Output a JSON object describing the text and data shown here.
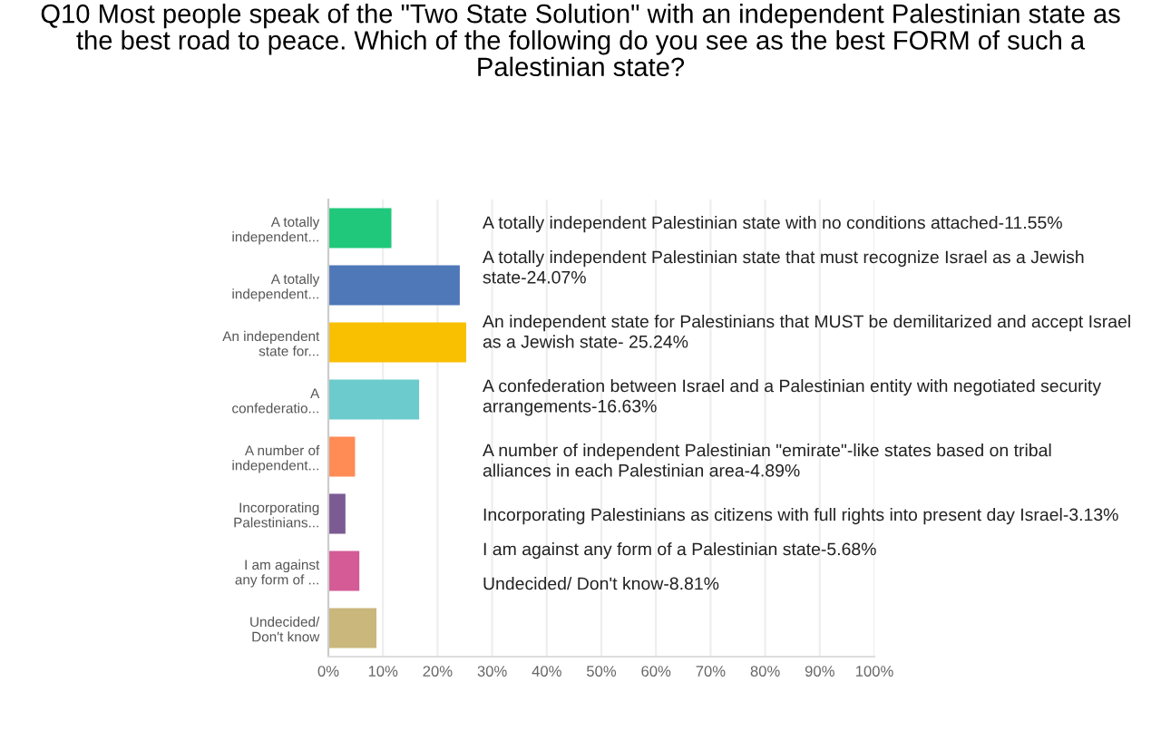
{
  "chart_data": {
    "type": "bar",
    "orientation": "horizontal",
    "title": "Q10 Most people speak of the \"Two State Solution\" with an independent Palestinian state as\nthe best road to peace. Which of the following do you see as the best FORM of such a\nPalestinian state?",
    "categories": [
      "A totally\nindependent...",
      "A totally\nindependent...",
      "An independent\nstate for...",
      "A\nconfederatio...",
      "A number of\nindependent...",
      "Incorporating\nPalestinians...",
      "I am against\nany form of ...",
      "Undecided/\nDon't know"
    ],
    "values": [
      11.55,
      24.07,
      25.24,
      16.63,
      4.89,
      3.13,
      5.68,
      8.81
    ],
    "colors": [
      "#1fc87b",
      "#4f78b8",
      "#f8c000",
      "#6ccbcc",
      "#ff8b55",
      "#7b5b92",
      "#d45b95",
      "#c9b77c"
    ],
    "xlim": [
      0,
      100
    ],
    "xticks": [
      {
        "value": 0,
        "label": "0%"
      },
      {
        "value": 10,
        "label": "10%"
      },
      {
        "value": 20,
        "label": "20%"
      },
      {
        "value": 30,
        "label": "30%"
      },
      {
        "value": 40,
        "label": "40%"
      },
      {
        "value": 50,
        "label": "50%"
      },
      {
        "value": 60,
        "label": "60%"
      },
      {
        "value": 70,
        "label": "70%"
      },
      {
        "value": 80,
        "label": "80%"
      },
      {
        "value": 90,
        "label": "90%"
      },
      {
        "value": 100,
        "label": "100%"
      }
    ],
    "grid": "x",
    "annotations": [
      "A totally independent Palestinian state with no conditions attached-11.55%",
      "A totally independent Palestinian state that must recognize Israel as a Jewish\nstate-24.07%",
      "An independent state for Palestinians that MUST be demilitarized and accept Israel\nas a Jewish state- 25.24%",
      "A confederation between Israel and a Palestinian entity with negotiated security\narrangements-16.63%",
      "A number of independent Palestinian \"emirate\"-like states based on tribal\nalliances in each Palestinian area-4.89%",
      "Incorporating Palestinians as citizens with full rights into present day Israel-3.13%",
      "I am against any form of a Palestinian state-5.68%",
      "Undecided/ Don't know-8.81%"
    ]
  }
}
